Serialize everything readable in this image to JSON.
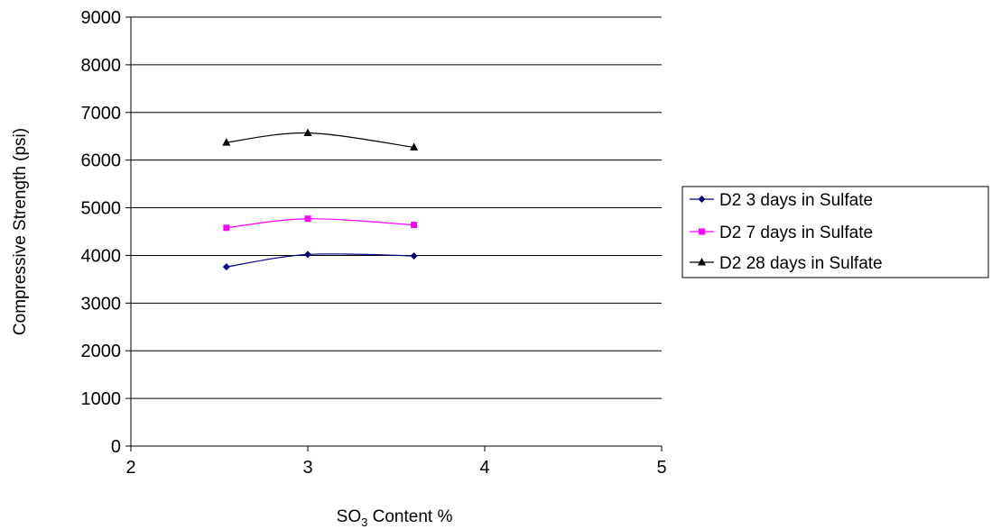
{
  "chart_data": {
    "type": "line",
    "title": "",
    "xlabel_main": "SO",
    "xlabel_sub": "3",
    "xlabel_rest": " Content %",
    "ylabel": "Compressive Strength (psi)",
    "xlim": [
      2,
      5
    ],
    "ylim": [
      0,
      9000
    ],
    "xticks": [
      2,
      3,
      4,
      5
    ],
    "yticks": [
      0,
      1000,
      2000,
      3000,
      4000,
      5000,
      6000,
      7000,
      8000,
      9000
    ],
    "grid": "horizontal",
    "legend_position": "right",
    "x": [
      2.54,
      3.0,
      3.6
    ],
    "series": [
      {
        "name": "D2 3 days in Sulfate",
        "values": [
          3760,
          4020,
          3990
        ],
        "color": "#000080",
        "marker": "diamond"
      },
      {
        "name": "D2 7 days in Sulfate",
        "values": [
          4580,
          4770,
          4640
        ],
        "color": "#ff00ff",
        "marker": "square"
      },
      {
        "name": "D2 28 days in Sulfate",
        "values": [
          6370,
          6570,
          6270
        ],
        "color": "#000000",
        "marker": "triangle"
      }
    ]
  }
}
